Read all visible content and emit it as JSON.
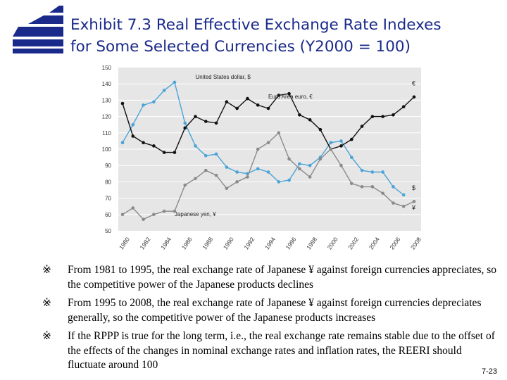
{
  "title_line1": "Exhibit 7.3 Real Effective Exchange Rate Indexes",
  "title_line2": "for Some Selected Currencies (Y2000 = 100)",
  "notes": [
    {
      "mark": "※",
      "text": "From 1981 to 1995, the real exchange rate of Japanese ¥ against foreign currencies appreciates, so the competitive power of the Japanese products declines"
    },
    {
      "mark": "※",
      "text": "From 1995 to 2008, the real exchange rate of Japanese ¥ against foreign currencies depreciates generally, so the competitive power of the Japanese products increases"
    },
    {
      "mark": "※",
      "text": "If the RPPP is true for the long term, i.e., the real exchange rate remains stable due to the offset of the effects of the changes in nominal exchange rates and inflation rates, the REERI should fluctuate around 100"
    }
  ],
  "page_number": "7-23",
  "colors": {
    "title": "#1a2a8a",
    "logo": "#1a2a8a",
    "usd": "#4aa3d8",
    "eur": "#111111",
    "jpy": "#8a8a8a",
    "panel": "#e6e6e6"
  },
  "chart_data": {
    "type": "line",
    "x": [
      1980,
      1981,
      1982,
      1983,
      1984,
      1985,
      1986,
      1987,
      1988,
      1989,
      1990,
      1991,
      1992,
      1993,
      1994,
      1995,
      1996,
      1997,
      1998,
      1999,
      2000,
      2001,
      2002,
      2003,
      2004,
      2005,
      2006,
      2007,
      2008
    ],
    "xticks": [
      "1980",
      "1982",
      "1984",
      "1986",
      "1988",
      "1990",
      "1992",
      "1994",
      "1996",
      "1998",
      "2000",
      "2002",
      "2004",
      "2006",
      "2008"
    ],
    "ylim": [
      50,
      150
    ],
    "yticks": [
      50,
      60,
      70,
      80,
      90,
      100,
      110,
      120,
      130,
      140,
      150
    ],
    "series": [
      {
        "name": "United States dollar, $",
        "end_label": "$",
        "values": [
          104,
          115,
          127,
          129,
          136,
          141,
          116,
          102,
          96,
          97,
          89,
          86,
          85,
          88,
          86,
          80,
          81,
          91,
          90,
          95,
          104,
          105,
          95,
          87,
          86,
          86,
          77,
          72,
          null
        ]
      },
      {
        "name": "Euro Area euro, €",
        "end_label": "€",
        "values": [
          128,
          108,
          104,
          102,
          98,
          98,
          113,
          120,
          117,
          116,
          129,
          125,
          131,
          127,
          125,
          133,
          134,
          121,
          118,
          112,
          100,
          102,
          106,
          114,
          120,
          120,
          121,
          126,
          132
        ]
      },
      {
        "name": "Japanese yen, ¥",
        "end_label": "¥",
        "values": [
          60,
          64,
          57,
          60,
          62,
          62,
          78,
          82,
          87,
          84,
          76,
          80,
          83,
          100,
          104,
          110,
          94,
          88,
          83,
          94,
          100,
          90,
          79,
          77,
          77,
          73,
          67,
          65,
          68
        ]
      }
    ]
  }
}
